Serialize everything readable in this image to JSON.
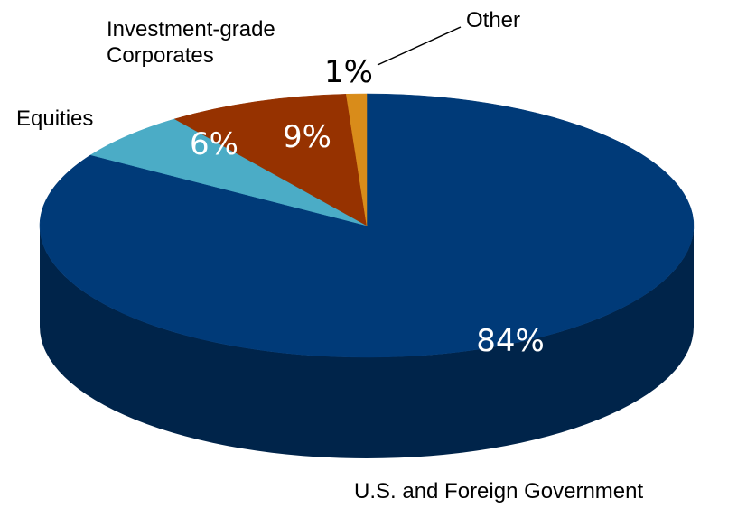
{
  "chart_data": {
    "type": "pie",
    "categories": [
      "U.S. and Foreign Government",
      "Equities",
      "Investment-grade Corporates",
      "Other"
    ],
    "values": [
      84,
      6,
      9,
      1
    ],
    "value_labels": [
      "84%",
      "6%",
      "9%",
      "1%"
    ],
    "colors": [
      "#003a78",
      "#4bacc6",
      "#963200",
      "#d98c1a"
    ]
  }
}
